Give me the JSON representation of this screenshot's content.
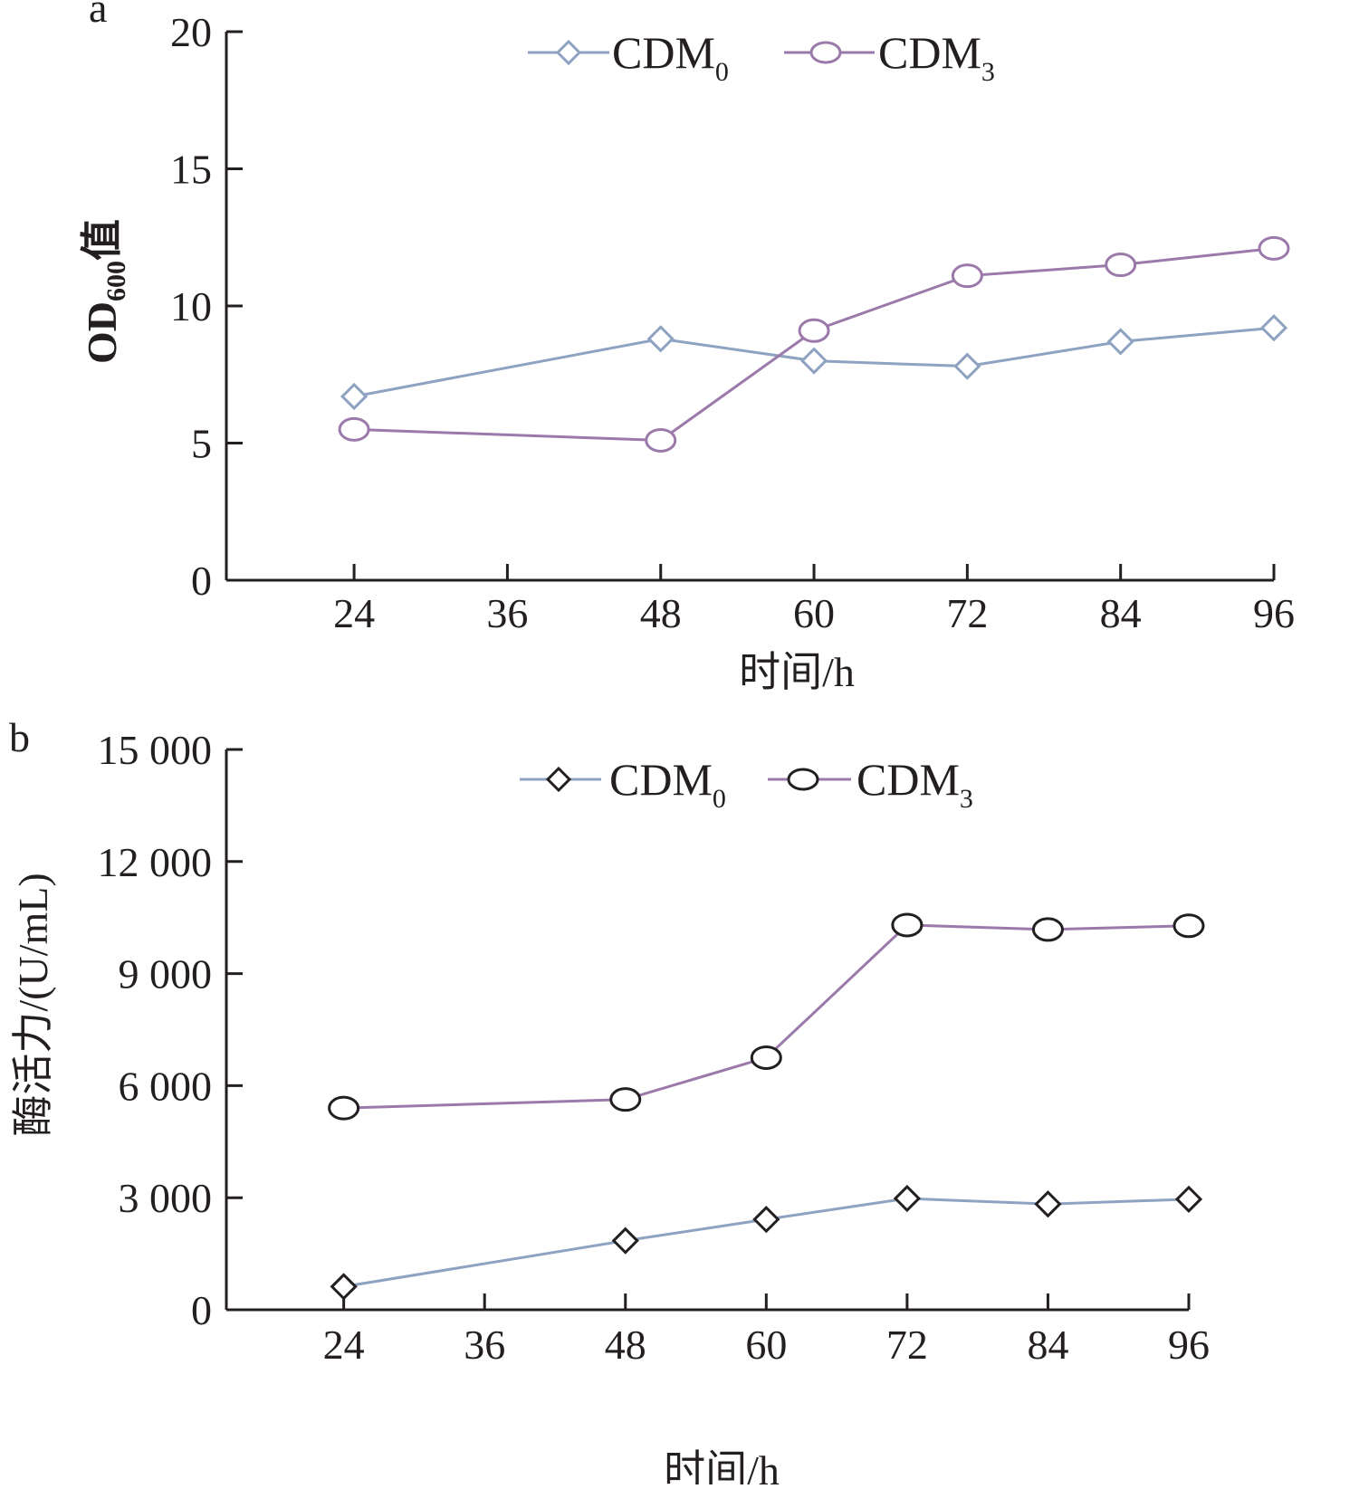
{
  "chart_data": [
    {
      "panel_label": "a",
      "type": "line",
      "xlabel": "时间/h",
      "ylabel": {
        "main": "OD",
        "sub": "600",
        "suffix": "值"
      },
      "x_ticks": [
        24,
        36,
        48,
        60,
        72,
        84,
        96
      ],
      "x_tick_labels": [
        "24",
        "36",
        "48",
        "60",
        "72",
        "84",
        "96"
      ],
      "y_ticks": [
        0,
        5,
        10,
        15,
        20
      ],
      "y_tick_labels": [
        "0",
        "5",
        "10",
        "15",
        "20"
      ],
      "ylim": [
        0,
        20
      ],
      "grid": false,
      "legend_position": "top",
      "x": [
        24,
        48,
        60,
        72,
        84,
        96
      ],
      "series": [
        {
          "legend_main": "CDM",
          "legend_sub": "0",
          "marker": "diamond",
          "color": "#8ea2c1",
          "marker_color": "#8ea2c1",
          "values": [
            6.7,
            8.8,
            8.0,
            7.8,
            8.7,
            9.2
          ]
        },
        {
          "legend_main": "CDM",
          "legend_sub": "3",
          "marker": "circle",
          "color": "#9b79aa",
          "marker_color": "#9b79aa",
          "values": [
            5.5,
            5.1,
            9.1,
            11.1,
            11.5,
            12.1
          ]
        }
      ]
    },
    {
      "panel_label": "b",
      "type": "line",
      "xlabel": "时间/h",
      "ylabel": {
        "main": "酶活力/(U/mL)",
        "sub": "",
        "suffix": ""
      },
      "x_ticks": [
        24,
        36,
        48,
        60,
        72,
        84,
        96
      ],
      "x_tick_labels": [
        "24",
        "36",
        "48",
        "60",
        "72",
        "84",
        "96"
      ],
      "y_ticks": [
        0,
        3000,
        6000,
        9000,
        12000,
        15000
      ],
      "y_tick_labels": [
        "0",
        "3 000",
        "6 000",
        "9 000",
        "12 000",
        "15 000"
      ],
      "ylim": [
        0,
        15000
      ],
      "grid": false,
      "legend_position": "top",
      "x": [
        24,
        48,
        60,
        72,
        84,
        96
      ],
      "series": [
        {
          "legend_main": "CDM",
          "legend_sub": "0",
          "marker": "diamond",
          "color": "#8ea2c1",
          "marker_color": "#231f20",
          "values": [
            620,
            1850,
            2420,
            2980,
            2830,
            2960
          ]
        },
        {
          "legend_main": "CDM",
          "legend_sub": "3",
          "marker": "circle",
          "color": "#9b79aa",
          "marker_color": "#231f20",
          "values": [
            5400,
            5630,
            6750,
            10300,
            10180,
            10280
          ]
        }
      ]
    }
  ]
}
